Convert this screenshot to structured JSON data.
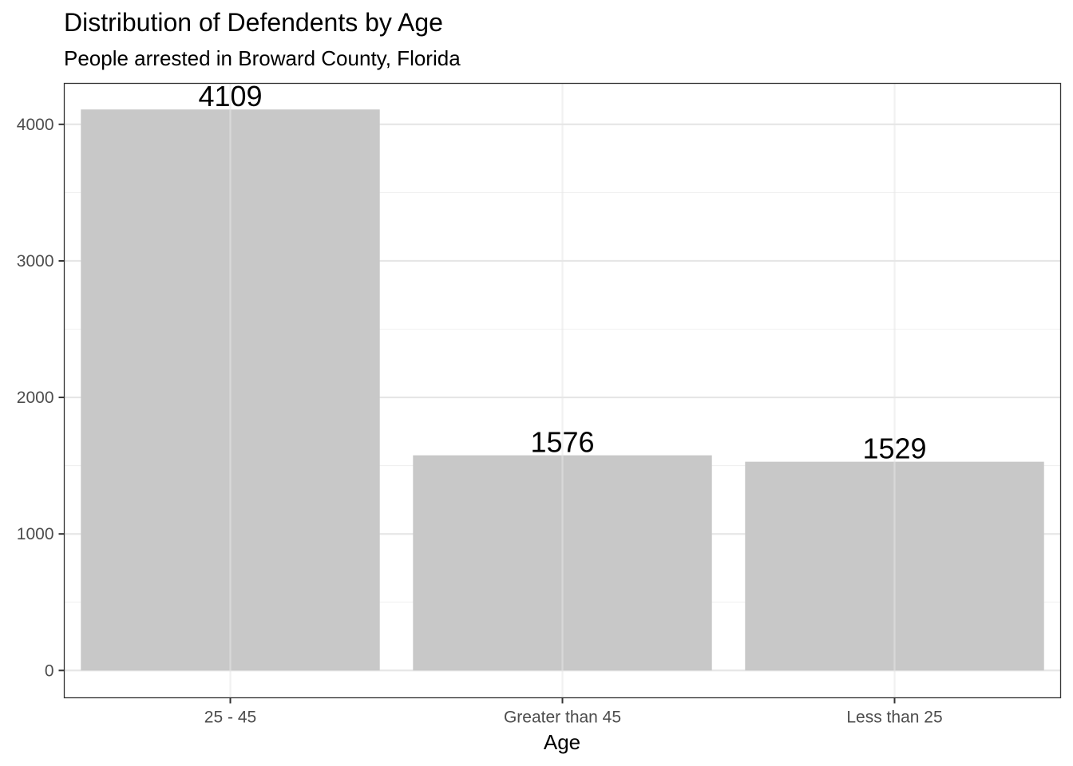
{
  "chart_data": {
    "type": "bar",
    "title": "Distribution of Defendents by Age",
    "subtitle": "People arrested in Broward County, Florida",
    "xlabel": "Age",
    "ylabel": "",
    "categories": [
      "25 - 45",
      "Greater than 45",
      "Less than 25"
    ],
    "values": [
      4109,
      1576,
      1529
    ],
    "data_labels": [
      "4109",
      "1576",
      "1529"
    ],
    "ylim": [
      -200,
      4300
    ],
    "yticks": [
      0,
      1000,
      2000,
      3000,
      4000
    ],
    "ytick_labels": [
      "0",
      "1000",
      "2000",
      "3000",
      "4000"
    ],
    "grid": true,
    "legend": "none",
    "colors": {
      "bar": "#c8c8c8",
      "grid_major": "#e6e6e6",
      "grid_minor": "#f0f0f0",
      "panel_border": "#333333",
      "tick_text": "#4d4d4d"
    }
  }
}
